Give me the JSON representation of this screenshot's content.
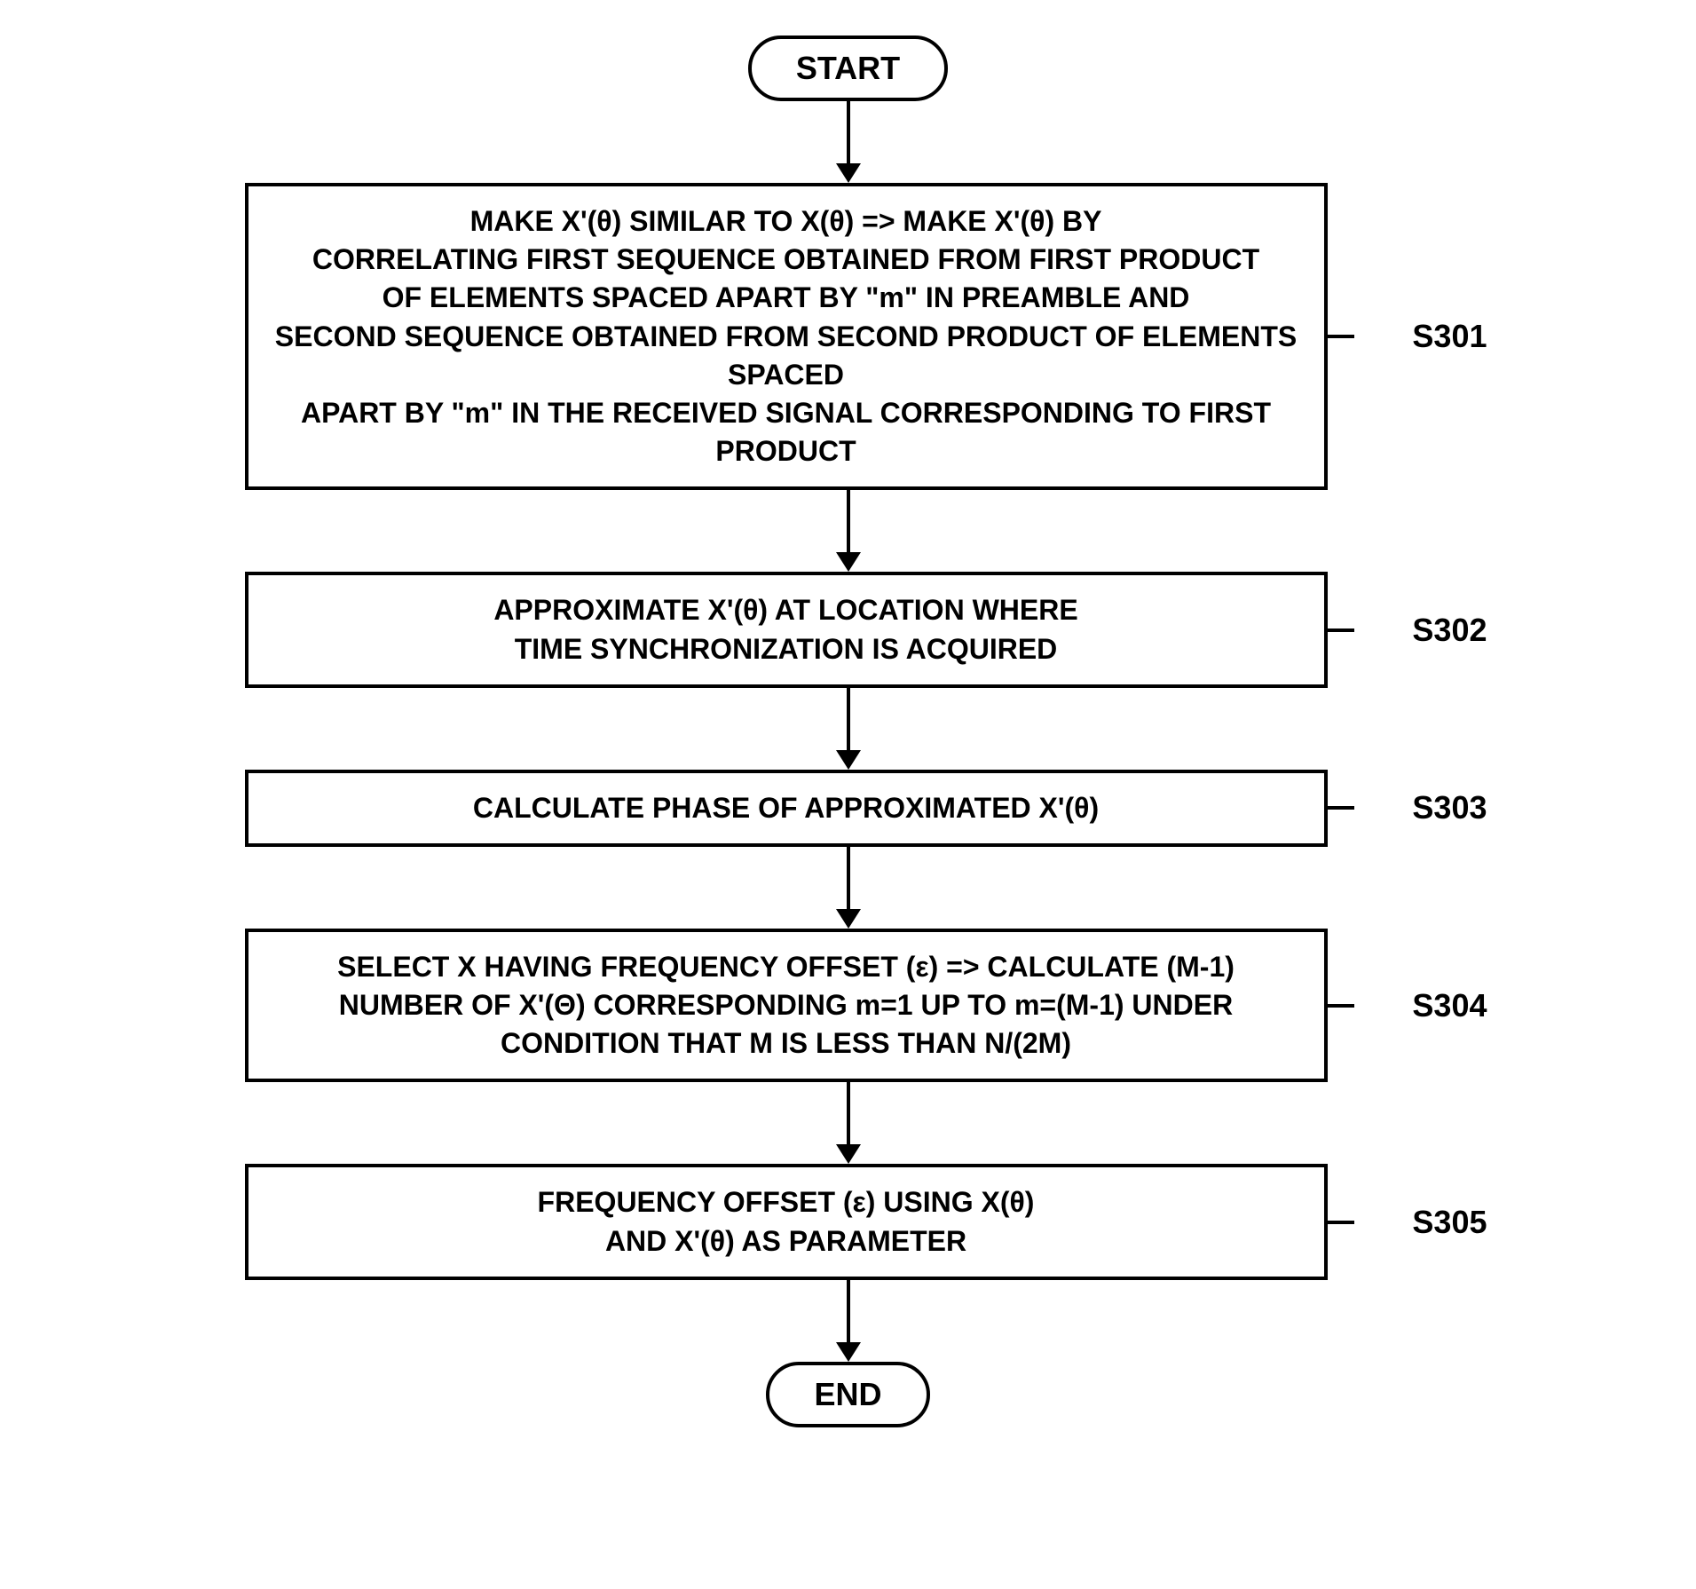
{
  "flowchart": {
    "type": "flowchart",
    "background_color": "#ffffff",
    "stroke_color": "#000000",
    "stroke_width": 4,
    "font_family": "Arial",
    "font_weight": 700,
    "terminal_fontsize": 36,
    "process_fontsize": 32,
    "label_fontsize": 36,
    "terminal_border_radius": 40,
    "arrow_shaft_width": 4,
    "arrowhead_width": 28,
    "arrowhead_height": 22,
    "start": {
      "label": "START"
    },
    "end": {
      "label": "END"
    },
    "steps": [
      {
        "id": "S301",
        "label": "S301",
        "text": "MAKE X'(θ) SIMILAR TO X(θ) => MAKE X'(θ) BY\nCORRELATING FIRST SEQUENCE OBTAINED FROM FIRST PRODUCT\nOF ELEMENTS SPACED APART BY \"m\" IN PREAMBLE AND\nSECOND SEQUENCE OBTAINED FROM SECOND PRODUCT OF ELEMENTS SPACED\nAPART BY \"m\" IN THE RECEIVED SIGNAL CORRESPONDING TO FIRST PRODUCT",
        "arrow_before_height": 70,
        "arrow_after_height": 70
      },
      {
        "id": "S302",
        "label": "S302",
        "text": "APPROXIMATE X'(θ) AT LOCATION WHERE\nTIME SYNCHRONIZATION IS ACQUIRED",
        "arrow_after_height": 70
      },
      {
        "id": "S303",
        "label": "S303",
        "text": "CALCULATE PHASE OF APPROXIMATED X'(θ)",
        "arrow_after_height": 70
      },
      {
        "id": "S304",
        "label": "S304",
        "text": "SELECT X HAVING FREQUENCY OFFSET (ε) => CALCULATE (M-1)\nNUMBER OF X'(Θ) CORRESPONDING m=1 UP TO m=(M-1) UNDER\nCONDITION THAT M IS LESS THAN N/(2M)",
        "arrow_after_height": 70
      },
      {
        "id": "S305",
        "label": "S305",
        "text": "FREQUENCY OFFSET (ε) USING X(θ)\nAND X'(θ) AS PARAMETER",
        "arrow_after_height": 70
      }
    ]
  }
}
